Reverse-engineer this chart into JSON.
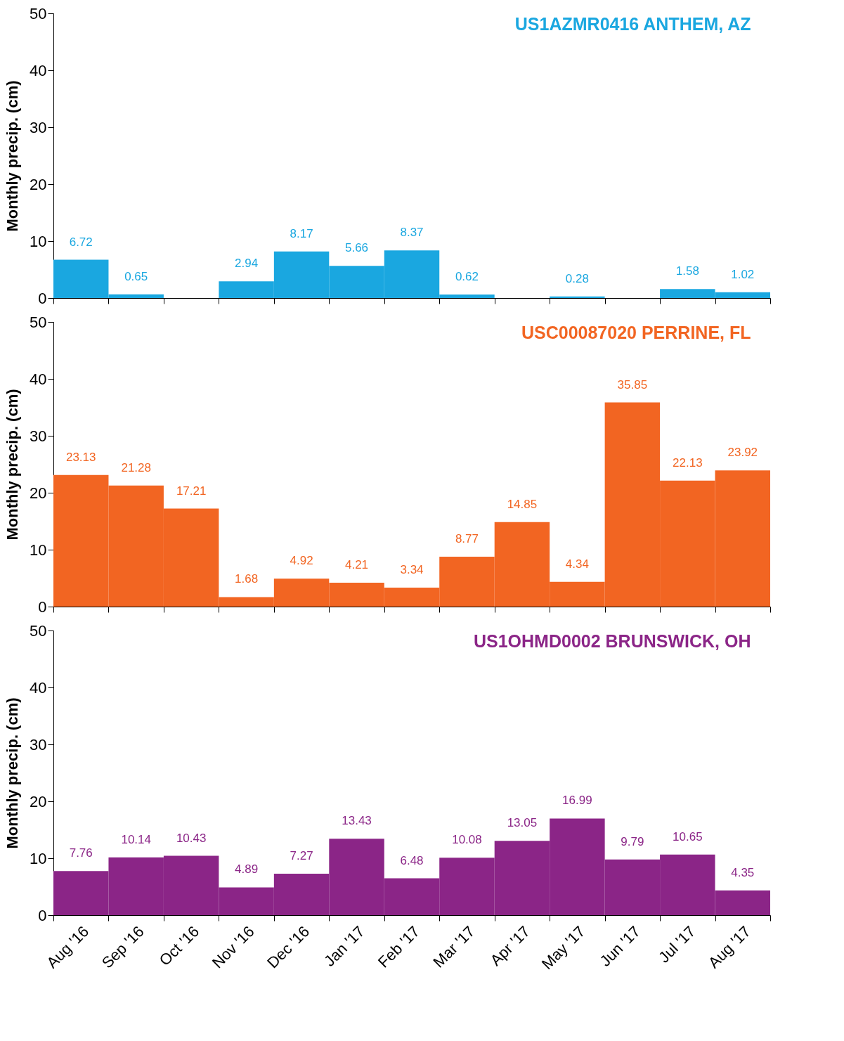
{
  "chart_data": [
    {
      "type": "bar",
      "title": "US1AZMR0416 ANTHEM, AZ",
      "ylabel": "Monthly precip. (cm)",
      "categories": [
        null,
        null,
        null,
        null,
        null,
        null,
        null,
        null,
        null,
        null,
        null,
        null,
        null
      ],
      "values": [
        6.72,
        0.65,
        null,
        2.94,
        8.17,
        5.66,
        8.37,
        0.62,
        null,
        0.28,
        null,
        1.58,
        1.02
      ],
      "color": "#1aa7e0",
      "ylim": [
        0,
        50
      ],
      "yticks": [
        0,
        10,
        20,
        30,
        40,
        50
      ],
      "data_labels": true,
      "tick_labels": "y"
    },
    {
      "type": "bar",
      "title": "USC00087020 PERRINE, FL",
      "ylabel": "Monthly precip. (cm)",
      "categories": [
        null,
        null,
        null,
        null,
        null,
        null,
        null,
        null,
        null,
        null,
        null,
        null,
        null
      ],
      "values": [
        23.13,
        21.28,
        17.21,
        1.68,
        4.92,
        4.21,
        3.34,
        8.77,
        14.85,
        4.34,
        35.85,
        22.13,
        23.92
      ],
      "color": "#f26522",
      "ylim": [
        0,
        50
      ],
      "yticks": [
        0,
        10,
        20,
        30,
        40,
        50
      ],
      "data_labels": true,
      "tick_labels": "y"
    },
    {
      "type": "bar",
      "title": "US1OHMD0002 BRUNSWICK, OH",
      "ylabel": "Monthly precip. (cm)",
      "categories": [
        "Aug '16",
        "Sep '16",
        "Oct '16",
        "Nov '16",
        "Dec '16",
        "Jan '17",
        "Feb '17",
        "Mar '17",
        "Apr '17",
        "May '17",
        "Jun '17",
        "Jul '17",
        "Aug '17"
      ],
      "values": [
        7.76,
        10.14,
        10.43,
        4.89,
        7.27,
        13.43,
        6.48,
        10.08,
        13.05,
        16.99,
        9.79,
        10.65,
        4.35
      ],
      "color": "#8b2587",
      "ylim": [
        0,
        50
      ],
      "yticks": [
        0,
        10,
        20,
        30,
        40,
        50
      ],
      "data_labels": true
    }
  ]
}
